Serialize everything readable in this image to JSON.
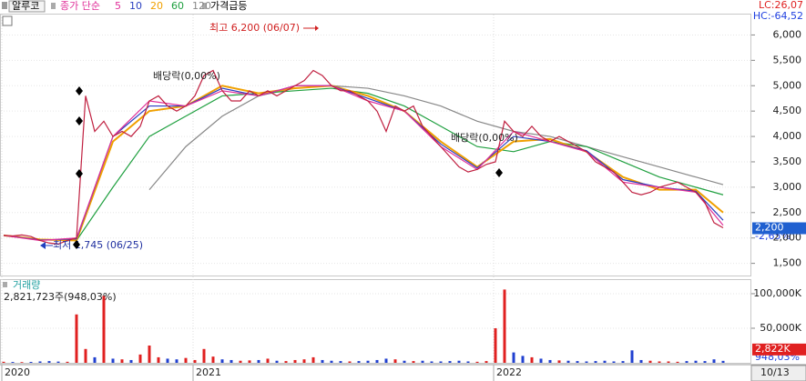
{
  "chart_data": {
    "type": "stock",
    "stock_name": "알루코",
    "ma_title": "종가 단순",
    "signal": "가격급등",
    "lc": "LC:26,07",
    "hc": "HC:-64,52",
    "high_note": "최고 6,200 (06/07)",
    "low_note": "최저 1,745 (06/25)",
    "dividend_notes": [
      "배당락(0,00%)",
      "배당락(0,00%)"
    ],
    "change": "-2,65%",
    "last_price": {
      "value": 2200,
      "label": "2,200"
    },
    "volume_title": "거래량",
    "volume_info": "2,821,723주(948,03%)",
    "volume_ratio": "948,03%",
    "last_volume": {
      "value": 2822,
      "label": "2,822K"
    },
    "last_date": "10/13",
    "xticks": [
      {
        "value": 0,
        "label": "2020"
      },
      {
        "value": 21,
        "label": "2021"
      },
      {
        "value": 54,
        "label": "2022"
      }
    ],
    "ylim": [
      1260,
      6420
    ],
    "yticks": [
      {
        "value": 1500,
        "label": "1,500"
      },
      {
        "value": 2000,
        "label": "2,000"
      },
      {
        "value": 2500,
        "label": "2,500"
      },
      {
        "value": 3000,
        "label": "3,000"
      },
      {
        "value": 3500,
        "label": "3,500"
      },
      {
        "value": 4000,
        "label": "4,000"
      },
      {
        "value": 4500,
        "label": "4,500"
      },
      {
        "value": 5000,
        "label": "5,000"
      },
      {
        "value": 5500,
        "label": "5,500"
      },
      {
        "value": 6000,
        "label": "6,000"
      }
    ],
    "volume_ylim": [
      0,
      121000
    ],
    "volume_yticks": [
      {
        "value": 50000,
        "label": "50,000K"
      },
      {
        "value": 100000,
        "label": "100,000K"
      }
    ],
    "close": [
      2050,
      2040,
      2060,
      2030,
      1950,
      1900,
      1880,
      1950,
      2000,
      4800,
      4100,
      4300,
      4000,
      4100,
      4000,
      4200,
      4700,
      4800,
      4600,
      4500,
      4600,
      4800,
      5200,
      5300,
      4900,
      4700,
      4700,
      4900,
      4800,
      4900,
      4800,
      4900,
      5000,
      5100,
      5300,
      5200,
      5000,
      4900,
      4900,
      4800,
      4700,
      4500,
      4100,
      4600,
      4500,
      4600,
      4200,
      4000,
      3800,
      3600,
      3400,
      3300,
      3350,
      3450,
      3500,
      4300,
      4100,
      4000,
      4200,
      4000,
      3900,
      4000,
      3900,
      3800,
      3700,
      3500,
      3400,
      3300,
      3100,
      2900,
      2850,
      2900,
      3000,
      3050,
      3100,
      3000,
      2900,
      2700,
      2300,
      2200
    ],
    "volume": [
      1500,
      1200,
      1000,
      1300,
      2000,
      2500,
      1800,
      1500,
      70000,
      20000,
      8000,
      97000,
      6000,
      5000,
      4000,
      12000,
      25000,
      8000,
      6000,
      5000,
      7000,
      4000,
      20000,
      9000,
      5000,
      4000,
      3000,
      3500,
      4000,
      6000,
      3000,
      2500,
      4000,
      5000,
      8000,
      4000,
      3000,
      2500,
      2000,
      2500,
      3000,
      4000,
      6000,
      5000,
      3000,
      2500,
      3000,
      2000,
      2000,
      2500,
      3000,
      2000,
      1500,
      2500,
      50000,
      106000,
      15000,
      10000,
      8000,
      6000,
      4000,
      3500,
      3000,
      2500,
      2000,
      2500,
      3000,
      2000,
      2500,
      18000,
      4000,
      3000,
      2000,
      2000,
      1500,
      2500,
      3000,
      2500,
      5000,
      2822
    ],
    "ma_x": [
      0,
      4,
      8,
      12,
      16,
      20,
      24,
      28,
      32,
      36,
      40,
      44,
      48,
      52,
      56,
      60,
      64,
      68,
      72,
      76,
      79
    ],
    "series": [
      {
        "name": "5",
        "color": "#e0309a",
        "values": [
          2050,
          1950,
          2000,
          4000,
          4700,
          4600,
          4900,
          4800,
          5000,
          5000,
          4700,
          4500,
          3800,
          3350,
          4100,
          3900,
          3700,
          3100,
          3000,
          2900,
          2250
        ]
      },
      {
        "name": "10",
        "color": "#2a3fc0",
        "values": [
          2050,
          1960,
          1980,
          4000,
          4600,
          4600,
          4950,
          4800,
          5000,
          5000,
          4750,
          4500,
          3850,
          3380,
          4000,
          3900,
          3720,
          3150,
          3000,
          2920,
          2350
        ]
      },
      {
        "name": "20",
        "color": "#f0a000",
        "values": [
          2050,
          1970,
          1950,
          3900,
          4500,
          4600,
          5000,
          4850,
          4950,
          5000,
          4800,
          4500,
          3900,
          3400,
          3900,
          3950,
          3700,
          3200,
          2950,
          2950,
          2500
        ]
      },
      {
        "name": "60",
        "color": "#20a040",
        "values": [
          null,
          null,
          1950,
          3000,
          4000,
          4400,
          4800,
          4850,
          4900,
          4950,
          4850,
          4600,
          4200,
          3800,
          3700,
          3900,
          3800,
          3500,
          3200,
          3000,
          2850
        ]
      },
      {
        "name": "120",
        "color": "#888888",
        "values": [
          null,
          null,
          null,
          null,
          2950,
          3800,
          4400,
          4800,
          4950,
          5000,
          4950,
          4800,
          4600,
          4300,
          4100,
          4000,
          3800,
          3600,
          3400,
          3200,
          3050
        ]
      }
    ]
  }
}
